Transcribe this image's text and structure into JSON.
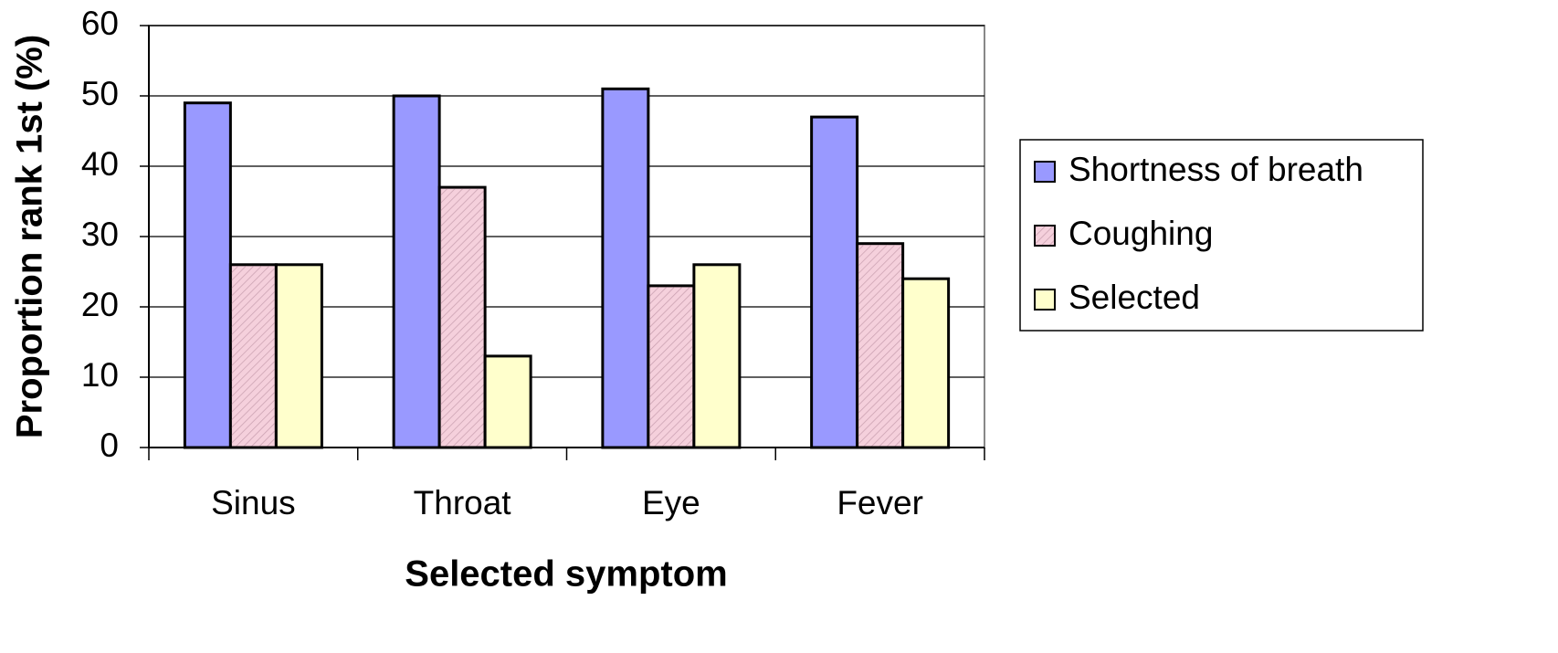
{
  "chart_data": {
    "type": "bar",
    "xlabel": "Selected symptom",
    "ylabel": "Proportion rank 1st (%)",
    "categories": [
      "Sinus",
      "Throat",
      "Eye",
      "Fever"
    ],
    "series": [
      {
        "name": "Shortness of breath",
        "color": "#9999ff",
        "values": [
          49,
          50,
          51,
          47
        ]
      },
      {
        "name": "Coughing",
        "color": "#f5d0dc",
        "values": [
          26,
          37,
          23,
          29
        ]
      },
      {
        "name": "Selected",
        "color": "#ffffcc",
        "values": [
          26,
          13,
          26,
          24
        ]
      }
    ],
    "ylim": [
      0,
      60
    ],
    "yticks": [
      0,
      10,
      20,
      30,
      40,
      50,
      60
    ],
    "grid": true,
    "legend": "right"
  }
}
